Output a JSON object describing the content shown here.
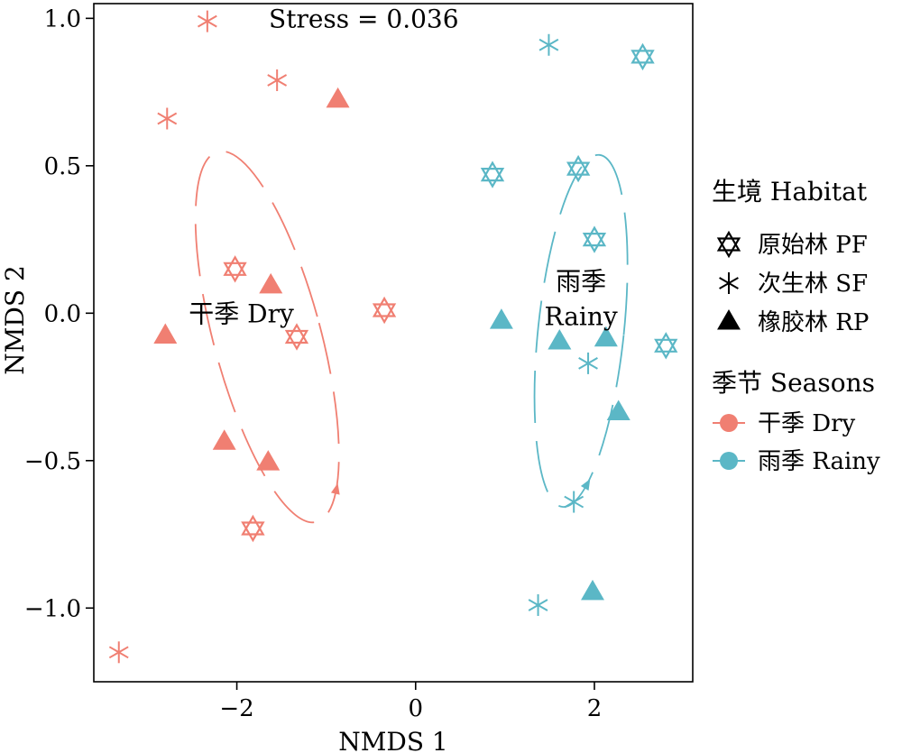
{
  "chart_data": {
    "type": "scatter",
    "xlabel": "NMDS 1",
    "ylabel": "NMDS 2",
    "xlim": [
      -3.6,
      3.1
    ],
    "ylim": [
      -1.25,
      1.05
    ],
    "x_ticks": [
      -2,
      0,
      2
    ],
    "x_tick_labels": [
      "−2",
      "0",
      "2"
    ],
    "y_ticks": [
      1.0,
      0.5,
      0.0,
      -0.5,
      -1.0
    ],
    "y_tick_labels": [
      "1.0",
      "0.5",
      "0.0",
      "−0.5",
      "−1.0"
    ],
    "annotations": [
      {
        "id": "stress",
        "text": "Stress = 0.036",
        "x": -0.58,
        "y": 1.0
      },
      {
        "id": "dry-label",
        "text": "干季 Dry",
        "x": -1.95,
        "y": 0.0
      },
      {
        "id": "rainy-label-1",
        "text": "雨季",
        "x": 1.85,
        "y": 0.11
      },
      {
        "id": "rainy-label-2",
        "text": "Rainy",
        "x": 1.85,
        "y": -0.01
      }
    ],
    "colors": {
      "dry": "#F07F72",
      "rainy": "#5BB7C6"
    },
    "series": [
      {
        "season": "dry",
        "habitat": "PF",
        "points": [
          [
            -2.02,
            0.15
          ],
          [
            -1.33,
            -0.08
          ],
          [
            -0.35,
            0.01
          ],
          [
            -1.82,
            -0.73
          ]
        ]
      },
      {
        "season": "dry",
        "habitat": "SF",
        "points": [
          [
            -2.33,
            0.99
          ],
          [
            -1.55,
            0.79
          ],
          [
            -2.78,
            0.66
          ],
          [
            -3.32,
            -1.15
          ]
        ]
      },
      {
        "season": "dry",
        "habitat": "RP",
        "points": [
          [
            -0.87,
            0.72
          ],
          [
            -1.62,
            0.09
          ],
          [
            -2.8,
            -0.08
          ],
          [
            -2.14,
            -0.44
          ],
          [
            -1.65,
            -0.51
          ]
        ]
      },
      {
        "season": "rainy",
        "habitat": "PF",
        "points": [
          [
            2.54,
            0.87
          ],
          [
            0.86,
            0.47
          ],
          [
            1.82,
            0.49
          ],
          [
            2.0,
            0.25
          ],
          [
            2.8,
            -0.11
          ]
        ]
      },
      {
        "season": "rainy",
        "habitat": "SF",
        "points": [
          [
            1.49,
            0.91
          ],
          [
            1.93,
            -0.17
          ],
          [
            1.77,
            -0.64
          ],
          [
            1.37,
            -0.99
          ]
        ]
      },
      {
        "season": "rainy",
        "habitat": "RP",
        "points": [
          [
            0.96,
            -0.03
          ],
          [
            1.61,
            -0.1
          ],
          [
            2.13,
            -0.09
          ],
          [
            2.27,
            -0.34
          ],
          [
            1.98,
            -0.95
          ]
        ]
      }
    ],
    "ellipses": [
      {
        "season": "dry",
        "cx": -1.66,
        "cy": -0.08,
        "rx": 0.6,
        "ry": 0.65,
        "angle_deg": -15
      },
      {
        "season": "rainy",
        "cx": 1.85,
        "cy": -0.06,
        "rx": 0.48,
        "ry": 0.6,
        "angle_deg": 6
      }
    ],
    "legend": {
      "placement": "right",
      "habitat_title": "生境 Habitat",
      "habitat_items": [
        {
          "key": "PF",
          "label": "原始林 PF"
        },
        {
          "key": "SF",
          "label": "次生林 SF"
        },
        {
          "key": "RP",
          "label": "橡胶林 RP"
        }
      ],
      "season_title": "季节 Seasons",
      "season_items": [
        {
          "key": "dry",
          "label": "干季 Dry"
        },
        {
          "key": "rainy",
          "label": "雨季 Rainy"
        }
      ]
    }
  }
}
